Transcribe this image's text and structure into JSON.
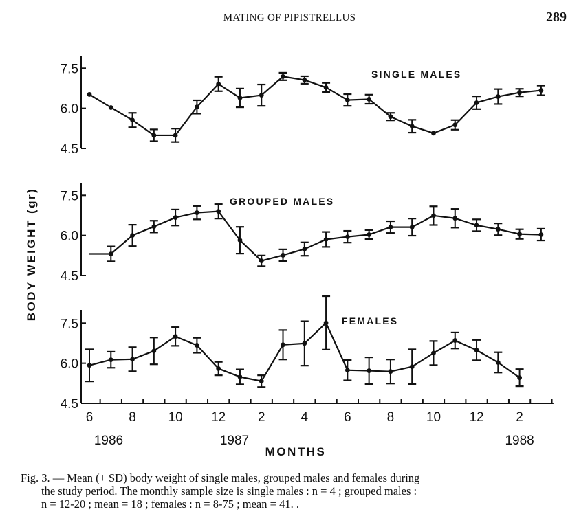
{
  "page": {
    "running_head": "MATING OF PIPISTRELLUS",
    "page_number": "289"
  },
  "caption": {
    "line1": "Fig. 3. — Mean (+ SD) body weight of single males, grouped males and females during",
    "line2": "the study period. The monthly sample size is single males : n = 4 ; grouped males :",
    "line3": "n = 12-20 ;  mean = 18 ;  females :  n = 8-75 ;  mean = 41. ."
  },
  "chart_data": {
    "type": "line",
    "title": "",
    "xlabel": "MONTHS",
    "ylabel": "BODY WEIGHT (gr)",
    "x_tick_labels": [
      "6",
      "8",
      "10",
      "12",
      "2",
      "4",
      "6",
      "8",
      "10",
      "12",
      "2"
    ],
    "year_labels": [
      {
        "label": "1986",
        "month_index": 0
      },
      {
        "label": "1987",
        "month_index": 7
      },
      {
        "label": "1988",
        "month_index": 20
      }
    ],
    "x_months": [
      "Jun 1986",
      "Jul 1986",
      "Aug 1986",
      "Sep 1986",
      "Oct 1986",
      "Nov 1986",
      "Dec 1986",
      "Jan 1987",
      "Feb 1987",
      "Mar 1987",
      "Apr 1987",
      "May 1987",
      "Jun 1987",
      "Jul 1987",
      "Aug 1987",
      "Sep 1987",
      "Oct 1987",
      "Nov 1987",
      "Dec 1987",
      "Jan 1988",
      "Feb 1988",
      "Mar 1988"
    ],
    "y_ticks": [
      4.5,
      6.0,
      7.5
    ],
    "y_tick_labels": [
      "4.5",
      "6.0",
      "7.5"
    ],
    "ylim": [
      4.5,
      8.0
    ],
    "grid": false,
    "panels": [
      {
        "name": "SINGLE MALES",
        "start_month_index": 0,
        "values": [
          6.52,
          6.03,
          5.56,
          4.99,
          4.99,
          6.05,
          6.91,
          6.39,
          6.49,
          7.19,
          7.06,
          6.78,
          6.31,
          6.34,
          5.69,
          5.33,
          5.07,
          5.38,
          6.21,
          6.44,
          6.59,
          6.67
        ],
        "sd": [
          0,
          0,
          0.27,
          0.22,
          0.25,
          0.25,
          0.27,
          0.35,
          0.4,
          0.14,
          0.14,
          0.17,
          0.22,
          0.17,
          0.14,
          0.24,
          0,
          0.18,
          0.24,
          0.28,
          0.14,
          0.18
        ]
      },
      {
        "name": "GROUPED MALES",
        "start_month_index": 1,
        "lead_in_from_month_index": 0,
        "values": [
          5.31,
          6.0,
          6.33,
          6.67,
          6.85,
          6.9,
          5.82,
          5.05,
          5.26,
          5.49,
          5.85,
          5.95,
          6.03,
          6.31,
          6.31,
          6.74,
          6.64,
          6.38,
          6.23,
          6.05,
          6.03
        ],
        "sd": [
          0.28,
          0.4,
          0.22,
          0.3,
          0.25,
          0.27,
          0.5,
          0.2,
          0.22,
          0.25,
          0.28,
          0.22,
          0.17,
          0.22,
          0.32,
          0.35,
          0.35,
          0.22,
          0.22,
          0.18,
          0.22
        ]
      },
      {
        "name": "FEMALES",
        "start_month_index": 0,
        "values": [
          5.92,
          6.13,
          6.15,
          6.46,
          7.0,
          6.67,
          5.8,
          5.49,
          5.33,
          6.69,
          6.74,
          7.51,
          5.74,
          5.72,
          5.69,
          5.87,
          6.38,
          6.85,
          6.49,
          6.03,
          5.46
        ],
        "sd": [
          0.6,
          0.3,
          0.45,
          0.5,
          0.35,
          0.28,
          0.25,
          0.28,
          0.22,
          0.55,
          0.83,
          1.0,
          0.38,
          0.5,
          0.45,
          0.65,
          0.45,
          0.3,
          0.38,
          0.38,
          0.32
        ]
      }
    ]
  }
}
